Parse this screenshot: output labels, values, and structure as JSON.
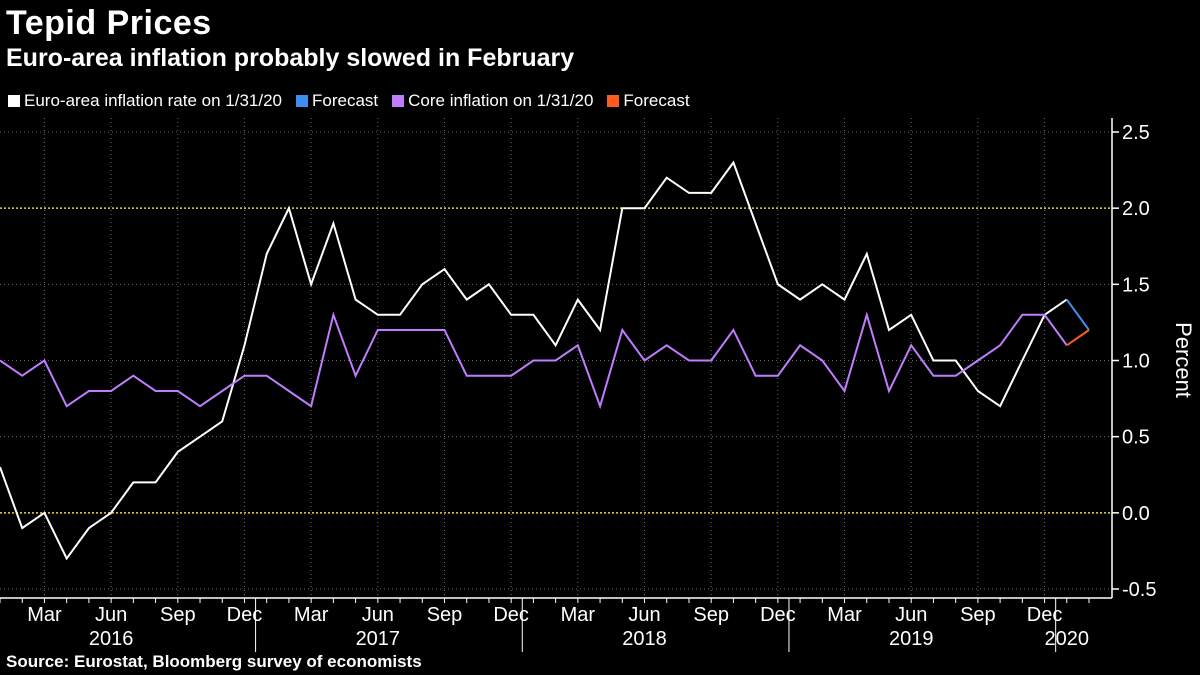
{
  "header": {
    "title": "Tepid Prices",
    "subtitle": "Euro-area inflation probably slowed in February"
  },
  "legend": [
    {
      "label": "Euro-area inflation rate on 1/31/20",
      "color": "#ffffff"
    },
    {
      "label": "Forecast",
      "color": "#3d8ef0"
    },
    {
      "label": "Core inflation on 1/31/20",
      "color": "#c07cff"
    },
    {
      "label": "Forecast",
      "color": "#ff5a1f"
    }
  ],
  "footer": {
    "source": "Source: Eurostat, Bloomberg survey of economists"
  },
  "chart_data": {
    "type": "line",
    "ylabel": "Percent",
    "ylim": [
      -0.5,
      2.5
    ],
    "yticks": [
      2.5,
      2.0,
      1.5,
      1.0,
      0.5,
      0.0,
      -0.5
    ],
    "ytick_labels": [
      "2.5",
      "2.0",
      "1.5",
      "1.0",
      "0.5",
      "0.0",
      "-0.5"
    ],
    "reference_lines": [
      0.0,
      2.0
    ],
    "reference_line_color": "#e8d44a",
    "grid": true,
    "legend_position": "top-left",
    "x_start": "2016-01",
    "x_end": "2020-02",
    "x_tick_labels": [
      {
        "month": "2016-03",
        "label": "Mar"
      },
      {
        "month": "2016-06",
        "label": "Jun"
      },
      {
        "month": "2016-09",
        "label": "Sep"
      },
      {
        "month": "2016-12",
        "label": "Dec"
      },
      {
        "month": "2017-03",
        "label": "Mar"
      },
      {
        "month": "2017-06",
        "label": "Jun"
      },
      {
        "month": "2017-09",
        "label": "Sep"
      },
      {
        "month": "2017-12",
        "label": "Dec"
      },
      {
        "month": "2018-03",
        "label": "Mar"
      },
      {
        "month": "2018-06",
        "label": "Jun"
      },
      {
        "month": "2018-09",
        "label": "Sep"
      },
      {
        "month": "2018-12",
        "label": "Dec"
      },
      {
        "month": "2019-03",
        "label": "Mar"
      },
      {
        "month": "2019-06",
        "label": "Jun"
      },
      {
        "month": "2019-09",
        "label": "Sep"
      },
      {
        "month": "2019-12",
        "label": "Dec"
      }
    ],
    "year_labels": [
      {
        "label": "2016",
        "center_month": "2016-06"
      },
      {
        "label": "2017",
        "center_month": "2017-06"
      },
      {
        "label": "2018",
        "center_month": "2018-06"
      },
      {
        "label": "2019",
        "center_month": "2019-06"
      },
      {
        "label": "2020",
        "center_month": "2020-01"
      }
    ],
    "year_separators": [
      "2016-12",
      "2017-12",
      "2018-12",
      "2019-12"
    ],
    "series": [
      {
        "name": "Euro-area inflation rate on 1/31/20",
        "color": "#ffffff",
        "values": [
          {
            "x": "2016-01",
            "y": 0.3
          },
          {
            "x": "2016-02",
            "y": -0.1
          },
          {
            "x": "2016-03",
            "y": 0.0
          },
          {
            "x": "2016-04",
            "y": -0.3
          },
          {
            "x": "2016-05",
            "y": -0.1
          },
          {
            "x": "2016-06",
            "y": 0.0
          },
          {
            "x": "2016-07",
            "y": 0.2
          },
          {
            "x": "2016-08",
            "y": 0.2
          },
          {
            "x": "2016-09",
            "y": 0.4
          },
          {
            "x": "2016-10",
            "y": 0.5
          },
          {
            "x": "2016-11",
            "y": 0.6
          },
          {
            "x": "2016-12",
            "y": 1.1
          },
          {
            "x": "2017-01",
            "y": 1.7
          },
          {
            "x": "2017-02",
            "y": 2.0
          },
          {
            "x": "2017-03",
            "y": 1.5
          },
          {
            "x": "2017-04",
            "y": 1.9
          },
          {
            "x": "2017-05",
            "y": 1.4
          },
          {
            "x": "2017-06",
            "y": 1.3
          },
          {
            "x": "2017-07",
            "y": 1.3
          },
          {
            "x": "2017-08",
            "y": 1.5
          },
          {
            "x": "2017-09",
            "y": 1.6
          },
          {
            "x": "2017-10",
            "y": 1.4
          },
          {
            "x": "2017-11",
            "y": 1.5
          },
          {
            "x": "2017-12",
            "y": 1.3
          },
          {
            "x": "2018-01",
            "y": 1.3
          },
          {
            "x": "2018-02",
            "y": 1.1
          },
          {
            "x": "2018-03",
            "y": 1.4
          },
          {
            "x": "2018-04",
            "y": 1.2
          },
          {
            "x": "2018-05",
            "y": 2.0
          },
          {
            "x": "2018-06",
            "y": 2.0
          },
          {
            "x": "2018-07",
            "y": 2.2
          },
          {
            "x": "2018-08",
            "y": 2.1
          },
          {
            "x": "2018-09",
            "y": 2.1
          },
          {
            "x": "2018-10",
            "y": 2.3
          },
          {
            "x": "2018-11",
            "y": 1.9
          },
          {
            "x": "2018-12",
            "y": 1.5
          },
          {
            "x": "2019-01",
            "y": 1.4
          },
          {
            "x": "2019-02",
            "y": 1.5
          },
          {
            "x": "2019-03",
            "y": 1.4
          },
          {
            "x": "2019-04",
            "y": 1.7
          },
          {
            "x": "2019-05",
            "y": 1.2
          },
          {
            "x": "2019-06",
            "y": 1.3
          },
          {
            "x": "2019-07",
            "y": 1.0
          },
          {
            "x": "2019-08",
            "y": 1.0
          },
          {
            "x": "2019-09",
            "y": 0.8
          },
          {
            "x": "2019-10",
            "y": 0.7
          },
          {
            "x": "2019-11",
            "y": 1.0
          },
          {
            "x": "2019-12",
            "y": 1.3
          },
          {
            "x": "2020-01",
            "y": 1.4
          }
        ]
      },
      {
        "name": "Forecast",
        "color": "#3d8ef0",
        "values": [
          {
            "x": "2020-01",
            "y": 1.4
          },
          {
            "x": "2020-02",
            "y": 1.2
          }
        ]
      },
      {
        "name": "Core inflation on 1/31/20",
        "color": "#c07cff",
        "values": [
          {
            "x": "2016-01",
            "y": 1.0
          },
          {
            "x": "2016-02",
            "y": 0.9
          },
          {
            "x": "2016-03",
            "y": 1.0
          },
          {
            "x": "2016-04",
            "y": 0.7
          },
          {
            "x": "2016-05",
            "y": 0.8
          },
          {
            "x": "2016-06",
            "y": 0.8
          },
          {
            "x": "2016-07",
            "y": 0.9
          },
          {
            "x": "2016-08",
            "y": 0.8
          },
          {
            "x": "2016-09",
            "y": 0.8
          },
          {
            "x": "2016-10",
            "y": 0.7
          },
          {
            "x": "2016-11",
            "y": 0.8
          },
          {
            "x": "2016-12",
            "y": 0.9
          },
          {
            "x": "2017-01",
            "y": 0.9
          },
          {
            "x": "2017-02",
            "y": 0.8
          },
          {
            "x": "2017-03",
            "y": 0.7
          },
          {
            "x": "2017-04",
            "y": 1.3
          },
          {
            "x": "2017-05",
            "y": 0.9
          },
          {
            "x": "2017-06",
            "y": 1.2
          },
          {
            "x": "2017-07",
            "y": 1.2
          },
          {
            "x": "2017-08",
            "y": 1.2
          },
          {
            "x": "2017-09",
            "y": 1.2
          },
          {
            "x": "2017-10",
            "y": 0.9
          },
          {
            "x": "2017-11",
            "y": 0.9
          },
          {
            "x": "2017-12",
            "y": 0.9
          },
          {
            "x": "2018-01",
            "y": 1.0
          },
          {
            "x": "2018-02",
            "y": 1.0
          },
          {
            "x": "2018-03",
            "y": 1.1
          },
          {
            "x": "2018-04",
            "y": 0.7
          },
          {
            "x": "2018-05",
            "y": 1.2
          },
          {
            "x": "2018-06",
            "y": 1.0
          },
          {
            "x": "2018-07",
            "y": 1.1
          },
          {
            "x": "2018-08",
            "y": 1.0
          },
          {
            "x": "2018-09",
            "y": 1.0
          },
          {
            "x": "2018-10",
            "y": 1.2
          },
          {
            "x": "2018-11",
            "y": 0.9
          },
          {
            "x": "2018-12",
            "y": 0.9
          },
          {
            "x": "2019-01",
            "y": 1.1
          },
          {
            "x": "2019-02",
            "y": 1.0
          },
          {
            "x": "2019-03",
            "y": 0.8
          },
          {
            "x": "2019-04",
            "y": 1.3
          },
          {
            "x": "2019-05",
            "y": 0.8
          },
          {
            "x": "2019-06",
            "y": 1.1
          },
          {
            "x": "2019-07",
            "y": 0.9
          },
          {
            "x": "2019-08",
            "y": 0.9
          },
          {
            "x": "2019-09",
            "y": 1.0
          },
          {
            "x": "2019-10",
            "y": 1.1
          },
          {
            "x": "2019-11",
            "y": 1.3
          },
          {
            "x": "2019-12",
            "y": 1.3
          },
          {
            "x": "2020-01",
            "y": 1.1
          }
        ]
      },
      {
        "name": "Forecast",
        "color": "#ff5a1f",
        "values": [
          {
            "x": "2020-01",
            "y": 1.1
          },
          {
            "x": "2020-02",
            "y": 1.2
          }
        ]
      }
    ]
  }
}
